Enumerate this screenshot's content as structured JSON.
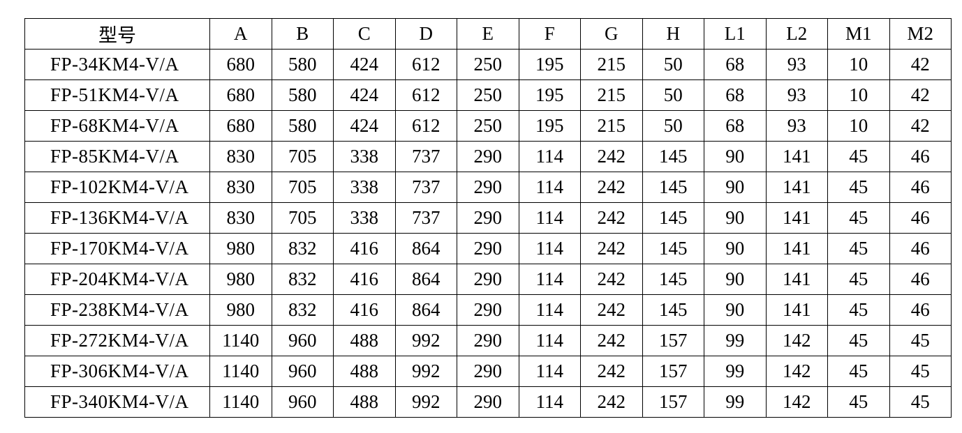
{
  "table": {
    "headers": [
      "型号",
      "A",
      "B",
      "C",
      "D",
      "E",
      "F",
      "G",
      "H",
      "L1",
      "L2",
      "M1",
      "M2"
    ],
    "rows": [
      [
        "FP-34KM4-V/A",
        "680",
        "580",
        "424",
        "612",
        "250",
        "195",
        "215",
        "50",
        "68",
        "93",
        "10",
        "42"
      ],
      [
        "FP-51KM4-V/A",
        "680",
        "580",
        "424",
        "612",
        "250",
        "195",
        "215",
        "50",
        "68",
        "93",
        "10",
        "42"
      ],
      [
        "FP-68KM4-V/A",
        "680",
        "580",
        "424",
        "612",
        "250",
        "195",
        "215",
        "50",
        "68",
        "93",
        "10",
        "42"
      ],
      [
        "FP-85KM4-V/A",
        "830",
        "705",
        "338",
        "737",
        "290",
        "114",
        "242",
        "145",
        "90",
        "141",
        "45",
        "46"
      ],
      [
        "FP-102KM4-V/A",
        "830",
        "705",
        "338",
        "737",
        "290",
        "114",
        "242",
        "145",
        "90",
        "141",
        "45",
        "46"
      ],
      [
        "FP-136KM4-V/A",
        "830",
        "705",
        "338",
        "737",
        "290",
        "114",
        "242",
        "145",
        "90",
        "141",
        "45",
        "46"
      ],
      [
        "FP-170KM4-V/A",
        "980",
        "832",
        "416",
        "864",
        "290",
        "114",
        "242",
        "145",
        "90",
        "141",
        "45",
        "46"
      ],
      [
        "FP-204KM4-V/A",
        "980",
        "832",
        "416",
        "864",
        "290",
        "114",
        "242",
        "145",
        "90",
        "141",
        "45",
        "46"
      ],
      [
        "FP-238KM4-V/A",
        "980",
        "832",
        "416",
        "864",
        "290",
        "114",
        "242",
        "145",
        "90",
        "141",
        "45",
        "46"
      ],
      [
        "FP-272KM4-V/A",
        "1140",
        "960",
        "488",
        "992",
        "290",
        "114",
        "242",
        "157",
        "99",
        "142",
        "45",
        "45"
      ],
      [
        "FP-306KM4-V/A",
        "1140",
        "960",
        "488",
        "992",
        "290",
        "114",
        "242",
        "157",
        "99",
        "142",
        "45",
        "45"
      ],
      [
        "FP-340KM4-V/A",
        "1140",
        "960",
        "488",
        "992",
        "290",
        "114",
        "242",
        "157",
        "99",
        "142",
        "45",
        "45"
      ]
    ]
  }
}
